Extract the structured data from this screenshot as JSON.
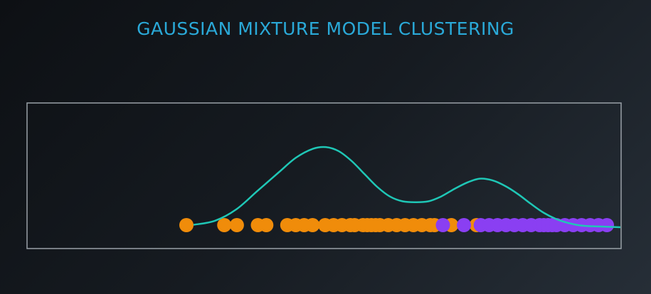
{
  "title": "GAUSSIAN MIXTURE MODEL CLUSTERING",
  "colors": {
    "frame": "#9aa1a8",
    "curve": "#1fc7b6",
    "cluster_a": "#f08c0a",
    "cluster_b": "#8a3ff2"
  },
  "chart_data": {
    "type": "scatter",
    "description_free": true,
    "xlim": [
      0,
      100
    ],
    "clusters": [
      {
        "name": "",
        "color": "#f08c0a",
        "x": [
          0,
          9,
          12,
          17,
          19,
          24,
          26,
          28,
          30,
          33,
          35,
          37,
          39,
          40,
          42,
          43,
          44,
          45,
          46,
          48,
          50,
          52,
          54,
          56,
          58,
          59,
          63,
          69
        ]
      },
      {
        "name": "",
        "color": "#8a3ff2",
        "x": [
          61,
          66,
          70,
          72,
          74,
          76,
          78,
          80,
          82,
          84,
          85,
          86,
          87,
          88,
          90,
          92,
          94,
          96,
          98,
          100
        ]
      }
    ],
    "mixture_curve": [
      [
        0,
        0.03
      ],
      [
        5,
        0.08
      ],
      [
        10,
        0.22
      ],
      [
        15,
        0.45
      ],
      [
        20,
        0.68
      ],
      [
        24,
        0.86
      ],
      [
        28,
        0.97
      ],
      [
        31,
        0.99
      ],
      [
        34,
        0.94
      ],
      [
        37,
        0.82
      ],
      [
        40,
        0.66
      ],
      [
        43,
        0.5
      ],
      [
        46,
        0.38
      ],
      [
        49,
        0.32
      ],
      [
        52,
        0.31
      ],
      [
        55,
        0.32
      ],
      [
        58,
        0.38
      ],
      [
        61,
        0.47
      ],
      [
        64,
        0.55
      ],
      [
        67,
        0.6
      ],
      [
        70,
        0.58
      ],
      [
        73,
        0.51
      ],
      [
        76,
        0.41
      ],
      [
        79,
        0.29
      ],
      [
        82,
        0.18
      ],
      [
        85,
        0.1
      ],
      [
        88,
        0.05
      ],
      [
        91,
        0.02
      ],
      [
        95,
        0.01
      ],
      [
        100,
        0.0
      ]
    ]
  }
}
